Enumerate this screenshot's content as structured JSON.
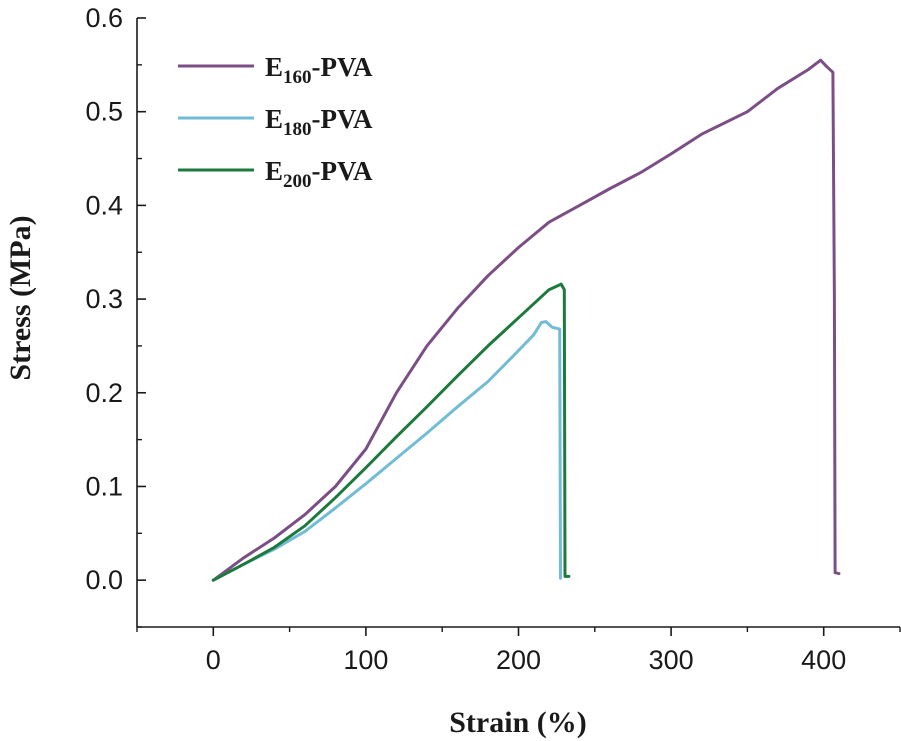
{
  "chart_data": {
    "type": "line",
    "xlabel": "Strain (%)",
    "ylabel": "Stress (MPa)",
    "xlim": [
      -50,
      450
    ],
    "ylim": [
      -0.05,
      0.6
    ],
    "xticks": [
      0,
      100,
      200,
      300,
      400
    ],
    "xtick_labels": [
      "0",
      "100",
      "200",
      "300",
      "400"
    ],
    "yticks": [
      0.0,
      0.1,
      0.2,
      0.3,
      0.4,
      0.5,
      0.6
    ],
    "ytick_labels": [
      "0.0",
      "0.1",
      "0.2",
      "0.3",
      "0.4",
      "0.5",
      "0.6"
    ],
    "grid": false,
    "legend_position": "top-left",
    "series": [
      {
        "name": "E160-PVA",
        "label_main": "E",
        "label_sub": "160",
        "label_rest": "-PVA",
        "color": "#7b4f85",
        "points": [
          [
            0,
            0
          ],
          [
            10,
            0.012
          ],
          [
            20,
            0.024
          ],
          [
            40,
            0.045
          ],
          [
            60,
            0.07
          ],
          [
            80,
            0.1
          ],
          [
            100,
            0.14
          ],
          [
            120,
            0.2
          ],
          [
            140,
            0.25
          ],
          [
            160,
            0.29
          ],
          [
            180,
            0.325
          ],
          [
            200,
            0.355
          ],
          [
            220,
            0.382
          ],
          [
            240,
            0.4
          ],
          [
            260,
            0.418
          ],
          [
            280,
            0.435
          ],
          [
            300,
            0.455
          ],
          [
            320,
            0.476
          ],
          [
            350,
            0.5
          ],
          [
            370,
            0.525
          ],
          [
            390,
            0.545
          ],
          [
            398,
            0.555
          ],
          [
            402,
            0.548
          ],
          [
            406,
            0.542
          ],
          [
            407,
            0.3
          ],
          [
            407.5,
            0.008
          ],
          [
            410,
            0.007
          ]
        ]
      },
      {
        "name": "E180-PVA",
        "label_main": "E",
        "label_sub": "180",
        "label_rest": "-PVA",
        "color": "#72bcd6",
        "points": [
          [
            0,
            0
          ],
          [
            20,
            0.017
          ],
          [
            40,
            0.033
          ],
          [
            60,
            0.052
          ],
          [
            80,
            0.077
          ],
          [
            100,
            0.103
          ],
          [
            120,
            0.13
          ],
          [
            140,
            0.157
          ],
          [
            160,
            0.185
          ],
          [
            180,
            0.212
          ],
          [
            200,
            0.245
          ],
          [
            210,
            0.262
          ],
          [
            215,
            0.275
          ],
          [
            218,
            0.276
          ],
          [
            222,
            0.27
          ],
          [
            227,
            0.268
          ],
          [
            227.5,
            0.002
          ]
        ]
      },
      {
        "name": "E200-PVA",
        "label_main": "E",
        "label_sub": "200",
        "label_rest": "-PVA",
        "color": "#1e7a3c",
        "points": [
          [
            0,
            0
          ],
          [
            20,
            0.017
          ],
          [
            40,
            0.035
          ],
          [
            60,
            0.058
          ],
          [
            80,
            0.088
          ],
          [
            100,
            0.12
          ],
          [
            120,
            0.153
          ],
          [
            140,
            0.185
          ],
          [
            160,
            0.218
          ],
          [
            180,
            0.25
          ],
          [
            200,
            0.28
          ],
          [
            220,
            0.31
          ],
          [
            228,
            0.316
          ],
          [
            230,
            0.31
          ],
          [
            230.5,
            0.004
          ],
          [
            233,
            0.004
          ]
        ]
      }
    ]
  }
}
